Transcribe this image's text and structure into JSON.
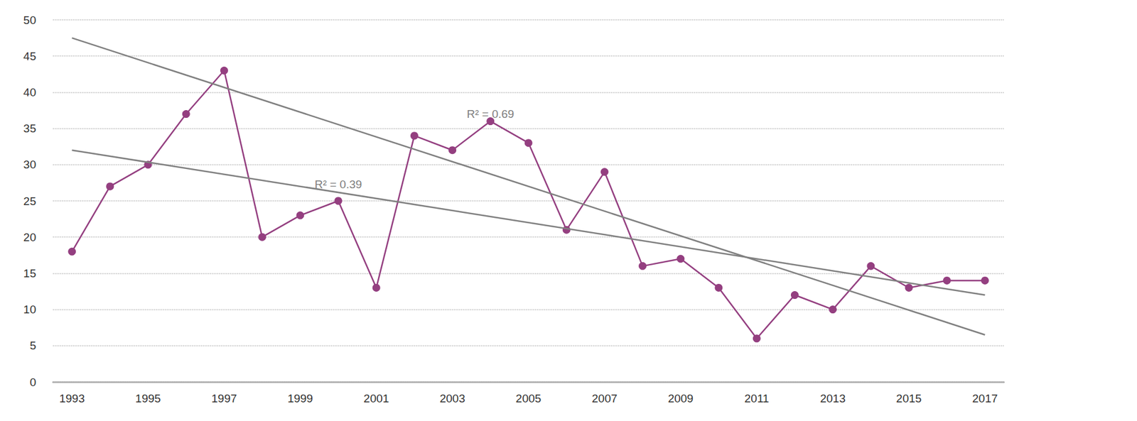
{
  "chart_data": {
    "type": "line",
    "categories": [
      "1993",
      null,
      "1995",
      null,
      "1997",
      null,
      "1999",
      null,
      "2001",
      null,
      "2003",
      null,
      "2005",
      null,
      "2007",
      null,
      "2009",
      null,
      "2011",
      null,
      "2013",
      null,
      "2015",
      null,
      "2017"
    ],
    "series": [
      {
        "color": "#943f80",
        "marker": "circle",
        "values": [
          18,
          27,
          30,
          37,
          43,
          20,
          23,
          25,
          13,
          34,
          32,
          36,
          33,
          21,
          29,
          16,
          17,
          13,
          6,
          12,
          10,
          16,
          13,
          14,
          14
        ]
      }
    ],
    "trend_lines": [
      {
        "start": 47.5,
        "end": 6.5,
        "label": "R² = 0.69",
        "color": "#808080"
      },
      {
        "start": 32,
        "end": 12,
        "label": "R² = 0.39",
        "color": "#808080"
      }
    ],
    "ylim": [
      0,
      50
    ],
    "yticks": [
      0,
      5,
      10,
      15,
      20,
      25,
      30,
      35,
      40,
      45,
      50
    ],
    "grid": true
  }
}
